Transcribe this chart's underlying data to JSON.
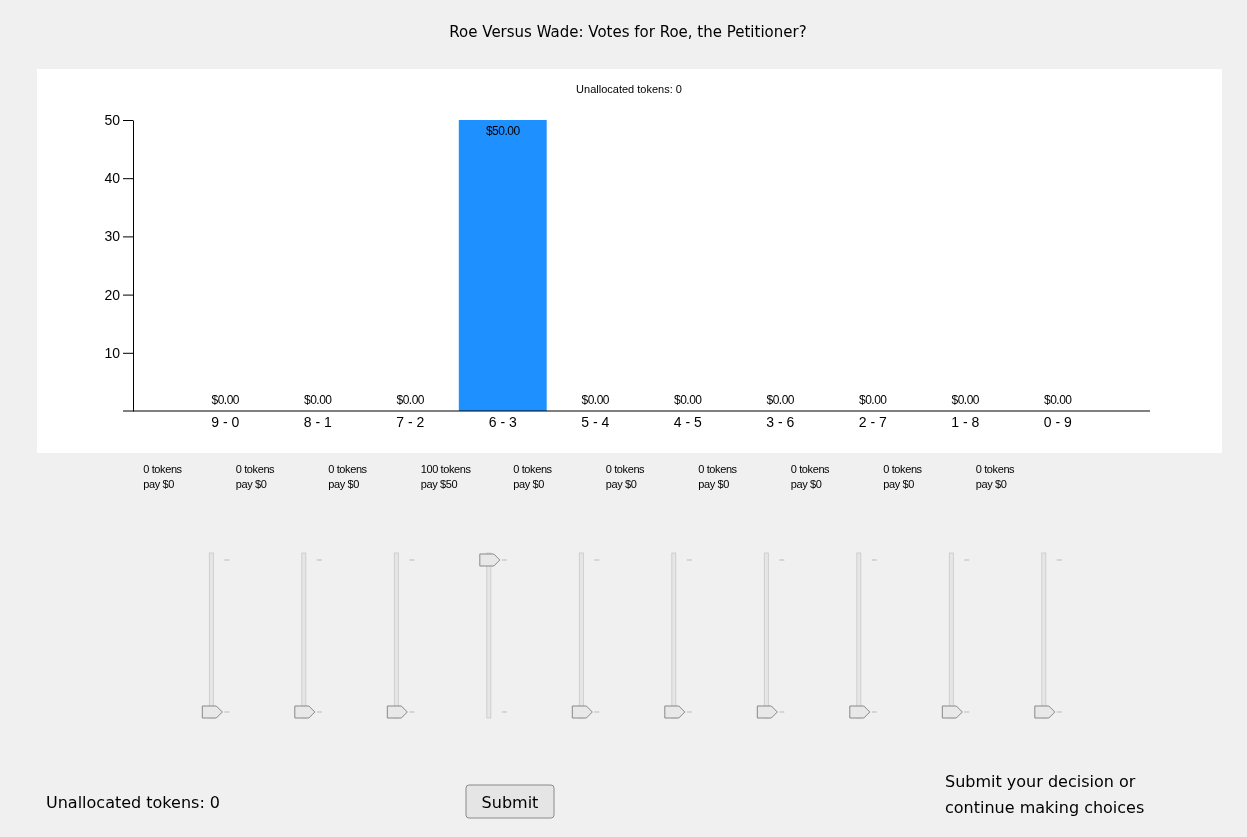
{
  "chart_data": {
    "type": "bar",
    "title": "Roe Versus Wade: Votes for Roe, the Petitioner?",
    "subtitle": "Unallocated tokens: 0",
    "categories": [
      "9 - 0",
      "8 - 1",
      "7 - 2",
      "6 - 3",
      "5 - 4",
      "4 - 5",
      "3 - 6",
      "2 - 7",
      "1 - 8",
      "0 - 9"
    ],
    "values": [
      0,
      0,
      0,
      50,
      0,
      0,
      0,
      0,
      0,
      0
    ],
    "value_labels": [
      "$0.00",
      "$0.00",
      "$0.00",
      "$50.00",
      "$0.00",
      "$0.00",
      "$0.00",
      "$0.00",
      "$0.00",
      "$0.00"
    ],
    "color": "#1e90ff",
    "ylim": [
      0,
      50
    ],
    "yticks": [
      10,
      20,
      30,
      40,
      50
    ],
    "annotations": [
      "0 tokens\npay $0",
      "0 tokens\npay $0",
      "0 tokens\npay $0",
      "100 tokens\npay $50",
      "0 tokens\npay $0",
      "0 tokens\npay $0",
      "0 tokens\npay $0",
      "0 tokens\npay $0",
      "0 tokens\npay $0",
      "0 tokens\npay $0",
      "Unallocated tokens: 0",
      "Submit",
      "Submit your decision or\ncontinue making choices"
    ]
  }
}
